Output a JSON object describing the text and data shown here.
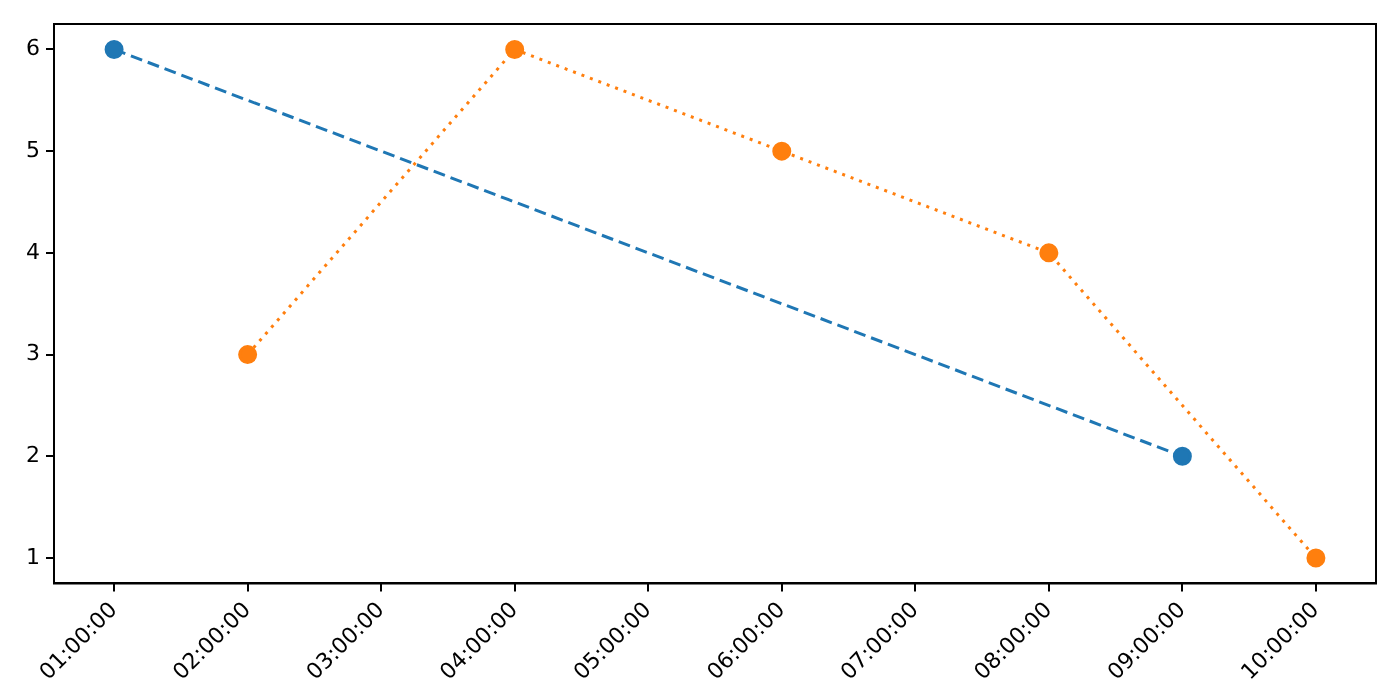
{
  "chart_data": {
    "type": "line",
    "series": [
      {
        "color": "#1f77b4",
        "line_style": "dashed",
        "x": [
          1,
          9
        ],
        "values": [
          6,
          2
        ]
      },
      {
        "color": "#ff7f0e",
        "line_style": "dotted",
        "x": [
          2,
          4,
          6,
          8,
          10
        ],
        "values": [
          3,
          6,
          5,
          4,
          1
        ]
      }
    ],
    "xlim": [
      0.55,
      10.45
    ],
    "xticks": [
      {
        "value": 1,
        "label": "01:00:00"
      },
      {
        "value": 2,
        "label": "02:00:00"
      },
      {
        "value": 3,
        "label": "03:00:00"
      },
      {
        "value": 4,
        "label": "04:00:00"
      },
      {
        "value": 5,
        "label": "05:00:00"
      },
      {
        "value": 6,
        "label": "06:00:00"
      },
      {
        "value": 7,
        "label": "07:00:00"
      },
      {
        "value": 8,
        "label": "08:00:00"
      },
      {
        "value": 9,
        "label": "09:00:00"
      },
      {
        "value": 10,
        "label": "10:00:00"
      }
    ],
    "ylim": [
      0.75,
      6.25
    ],
    "yticks": [
      1,
      2,
      3,
      4,
      5,
      6
    ],
    "grid": false,
    "legend": false,
    "marker": "circle"
  }
}
